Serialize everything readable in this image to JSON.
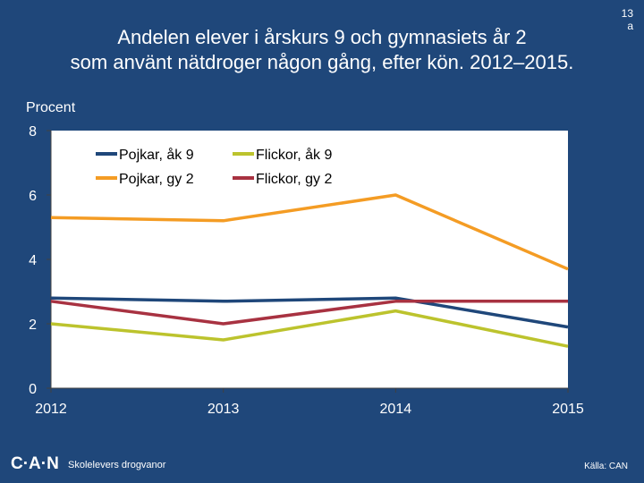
{
  "slide": {
    "number": "13",
    "number_suffix": "a",
    "title_line1": "Andelen elever i årskurs 9 och gymnasiets år 2",
    "title_line2": "som använt nätdroger någon gång, efter kön. 2012–2015."
  },
  "footer": {
    "logo": "C·A·N",
    "subtitle": "Skolelevers drogvanor",
    "source": "Källa: CAN"
  },
  "colors": {
    "background": "#1f477a",
    "plot_bg": "#ffffff",
    "pojkar_ak9": "#1f477a",
    "flickor_ak9": "#bcc32d",
    "pojkar_gy2": "#f49c24",
    "flickor_gy2": "#a83241"
  },
  "chart_data": {
    "type": "line",
    "title": "",
    "xlabel": "",
    "ylabel": "Procent",
    "x": [
      "2012",
      "2013",
      "2014",
      "2015"
    ],
    "ylim": [
      0,
      8
    ],
    "yticks": [
      "0",
      "2",
      "4",
      "6",
      "8"
    ],
    "grid": false,
    "legend": "top",
    "series": [
      {
        "name": "Pojkar, åk 9",
        "color": "#1f477a",
        "values": [
          2.8,
          2.7,
          2.8,
          1.9
        ]
      },
      {
        "name": "Flickor, åk 9",
        "color": "#bcc32d",
        "values": [
          2.0,
          1.5,
          2.4,
          1.3
        ]
      },
      {
        "name": "Pojkar, gy 2",
        "color": "#f49c24",
        "values": [
          5.3,
          5.2,
          6.0,
          3.7
        ]
      },
      {
        "name": "Flickor, gy 2",
        "color": "#a83241",
        "values": [
          2.7,
          2.0,
          2.7,
          2.7
        ]
      }
    ]
  }
}
